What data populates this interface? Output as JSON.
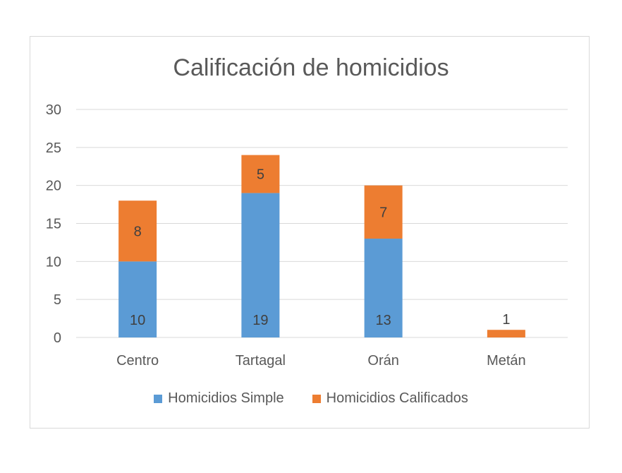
{
  "chart_data": {
    "type": "bar",
    "stacked": true,
    "title": "Calificación de homicidios",
    "categories": [
      "Centro",
      "Tartagal",
      "Orán",
      "Metán"
    ],
    "series": [
      {
        "name": "Homicidios Simple",
        "values": [
          10,
          19,
          13,
          0
        ],
        "labels": [
          "10",
          "19",
          "13",
          ""
        ],
        "color": "#5b9bd5"
      },
      {
        "name": "Homicidios Calificados",
        "values": [
          8,
          5,
          7,
          1
        ],
        "labels": [
          "8",
          "5",
          "7",
          "1"
        ],
        "color": "#ed7d31"
      }
    ],
    "ylim": [
      0,
      30
    ],
    "yticks": [
      "0",
      "5",
      "10",
      "15",
      "20",
      "25",
      "30"
    ],
    "ytick_values": [
      0,
      5,
      10,
      15,
      20,
      25,
      30
    ],
    "grid": true,
    "legend": "bottom",
    "xlabel": "",
    "ylabel": ""
  }
}
